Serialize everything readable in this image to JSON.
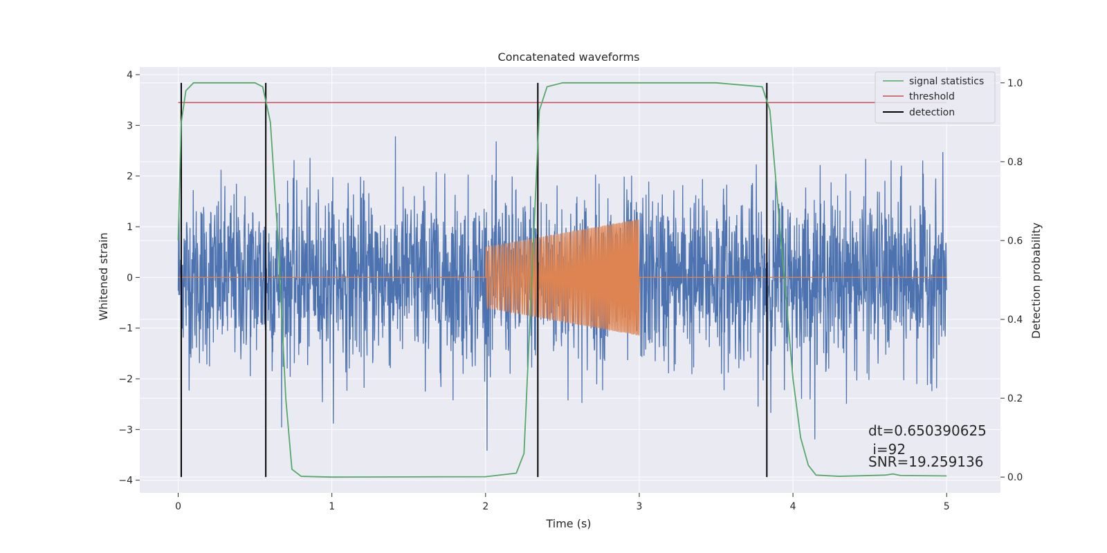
{
  "chart_data": {
    "type": "line",
    "title": "Concatenated waveforms",
    "xlabel": "Time (s)",
    "ylabel": "Whitened strain",
    "y2label": "Detection probability",
    "xlim": [
      -0.25,
      5.35
    ],
    "ylim": [
      -4.25,
      4.15
    ],
    "y2lim": [
      -0.04,
      1.04
    ],
    "x_ticks": [
      0,
      1,
      2,
      3,
      4,
      5
    ],
    "y_ticks": [
      -4,
      -3,
      -2,
      -1,
      0,
      1,
      2,
      3,
      4
    ],
    "y2_ticks": [
      0.0,
      0.2,
      0.4,
      0.6,
      0.8,
      1.0
    ],
    "x_tick_labels": [
      "0",
      "1",
      "2",
      "3",
      "4",
      "5"
    ],
    "y_tick_labels": [
      "−4",
      "−3",
      "−2",
      "−1",
      "0",
      "1",
      "2",
      "3",
      "4"
    ],
    "y2_tick_labels": [
      "0.0",
      "0.2",
      "0.4",
      "0.6",
      "0.8",
      "1.0"
    ],
    "grid": true,
    "legend_position": "top-right",
    "colors": {
      "background": "#eaeaf2",
      "grid": "#ffffff",
      "strain": "#4c72b0",
      "injection": "#dd8452",
      "statistics": "#55a868",
      "threshold": "#c44e52",
      "detection": "#000000"
    },
    "series": [
      {
        "name": "whitened strain (noise)",
        "axis": "left",
        "x_range": [
          0,
          5
        ],
        "typical_amplitude": 0.85,
        "max_abs": 3.8
      },
      {
        "name": "injected chirp",
        "axis": "left",
        "x_range": [
          2.0,
          3.0
        ],
        "start_amplitude": 0.6,
        "end_amplitude": 1.15,
        "baseline": 0
      },
      {
        "name": "signal statistics",
        "axis": "right",
        "x": [
          0.0,
          0.02,
          0.05,
          0.1,
          0.5,
          0.55,
          0.6,
          0.65,
          0.7,
          0.74,
          0.8,
          1.0,
          2.0,
          2.2,
          2.25,
          2.3,
          2.35,
          2.4,
          2.5,
          3.5,
          3.8,
          3.85,
          3.9,
          4.0,
          4.05,
          4.1,
          4.15,
          4.3,
          4.6,
          4.65,
          4.7,
          5.0
        ],
        "values": [
          0.6,
          0.9,
          0.98,
          1.0,
          1.0,
          0.99,
          0.9,
          0.6,
          0.2,
          0.02,
          0.002,
          0.0,
          0.001,
          0.01,
          0.06,
          0.5,
          0.93,
          0.99,
          1.0,
          1.0,
          0.99,
          0.93,
          0.7,
          0.25,
          0.1,
          0.03,
          0.005,
          0.002,
          0.005,
          0.008,
          0.004,
          0.003
        ]
      },
      {
        "name": "threshold",
        "axis": "right",
        "value": 0.95,
        "x_range": [
          0,
          5
        ]
      },
      {
        "name": "detection",
        "axis": "right",
        "x": [
          0.02,
          0.57,
          2.34,
          3.83
        ],
        "y_range": [
          0.0,
          1.0
        ]
      }
    ],
    "legend": [
      "signal statistics",
      "threshold",
      "detection"
    ],
    "annotations": [
      "dt=0.650390625",
      " i=92",
      "SNR=19.259136"
    ]
  }
}
